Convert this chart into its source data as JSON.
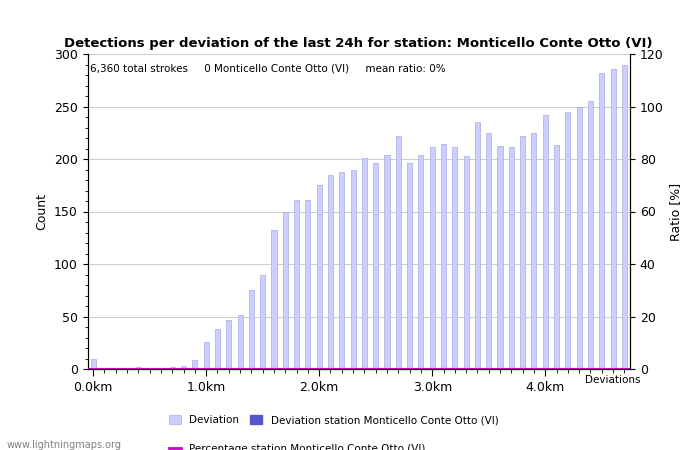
{
  "title": "Detections per deviation of the last 24h for station: Monticello Conte Otto (VI)",
  "subtitle": "6,360 total strokes     0 Monticello Conte Otto (VI)     mean ratio: 0%",
  "ylabel_left": "Count",
  "ylabel_right": "Ratio [%]",
  "x_tick_labels": [
    "0.0km",
    "1.0km",
    "2.0km",
    "3.0km",
    "4.0km"
  ],
  "x_tick_positions": [
    0,
    10,
    20,
    30,
    40
  ],
  "ylim_left": [
    0,
    300
  ],
  "ylim_right": [
    0,
    120
  ],
  "yticks_left": [
    0,
    50,
    100,
    150,
    200,
    250,
    300
  ],
  "yticks_right": [
    0,
    20,
    40,
    60,
    80,
    100,
    120
  ],
  "bar_color": "#ccceff",
  "bar_edge_color": "#aaaadd",
  "station_bar_color": "#5555cc",
  "line_color": "#cc00cc",
  "background_color": "#ffffff",
  "grid_color": "#cccccc",
  "watermark": "www.lightningmaps.org",
  "legend_deviation": "Deviation",
  "legend_deviation_station": "Deviation station Monticello Conte Otto (VI)",
  "legend_percentage": "Percentage station Monticello Conte Otto (VI)",
  "legend_deviations_label": "Deviations",
  "bar_values": [
    10,
    1,
    1,
    1,
    2,
    1,
    1,
    2,
    3,
    9,
    26,
    38,
    47,
    51,
    75,
    90,
    132,
    150,
    161,
    161,
    175,
    185,
    188,
    190,
    201,
    196,
    204,
    222,
    196,
    204,
    211,
    214,
    211,
    203,
    235,
    225,
    212,
    211,
    222,
    225,
    242,
    213,
    245,
    250,
    255,
    282,
    286,
    290
  ],
  "n_bars": 48,
  "bar_width": 0.45
}
